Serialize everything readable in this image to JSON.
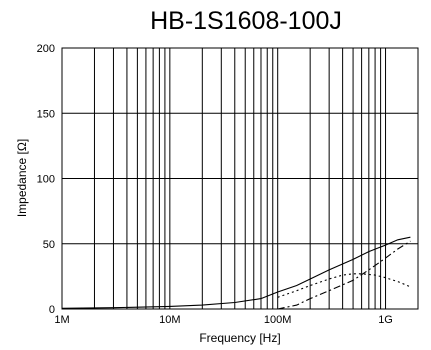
{
  "chart_data": {
    "type": "line",
    "title": "HB-1S1608-100J",
    "xlabel": "Frequency  [Hz]",
    "ylabel": "Impedance  [Ω]",
    "x_scale": "log",
    "xlim": [
      1000000,
      2000000000
    ],
    "ylim": [
      0,
      200
    ],
    "yticks": [
      0,
      50,
      100,
      150,
      200
    ],
    "ytick_labels": [
      "0",
      "50",
      "100",
      "150",
      "200"
    ],
    "xticks": [
      1000000,
      10000000,
      100000000,
      1000000000
    ],
    "xtick_labels": [
      "1M",
      "10M",
      "100M",
      "1G"
    ],
    "grid": true,
    "legend": "none",
    "series": [
      {
        "line_style": "solid",
        "color": "#000000",
        "x": [
          1000000,
          3000000,
          10000000,
          20000000,
          40000000,
          70000000,
          100000000,
          150000000,
          200000000,
          300000000,
          500000000,
          700000000,
          1000000000,
          1300000000,
          1700000000
        ],
        "y": [
          0.5,
          1,
          2,
          3,
          5,
          8,
          13,
          18,
          23,
          30,
          38,
          44,
          49,
          53,
          55
        ]
      },
      {
        "line_style": "dash-dot",
        "color": "#000000",
        "x": [
          100000000,
          150000000,
          200000000,
          300000000,
          500000000,
          700000000,
          1000000000,
          1300000000,
          1700000000
        ],
        "y": [
          0,
          3,
          8,
          14,
          22,
          30,
          39,
          46,
          52
        ]
      },
      {
        "line_style": "dotted",
        "color": "#000000",
        "x": [
          100000000,
          150000000,
          200000000,
          300000000,
          400000000,
          500000000,
          600000000,
          800000000,
          1000000000,
          1300000000,
          1700000000
        ],
        "y": [
          9,
          14,
          18,
          23,
          26,
          27,
          27,
          26,
          24,
          21,
          17
        ]
      }
    ]
  }
}
